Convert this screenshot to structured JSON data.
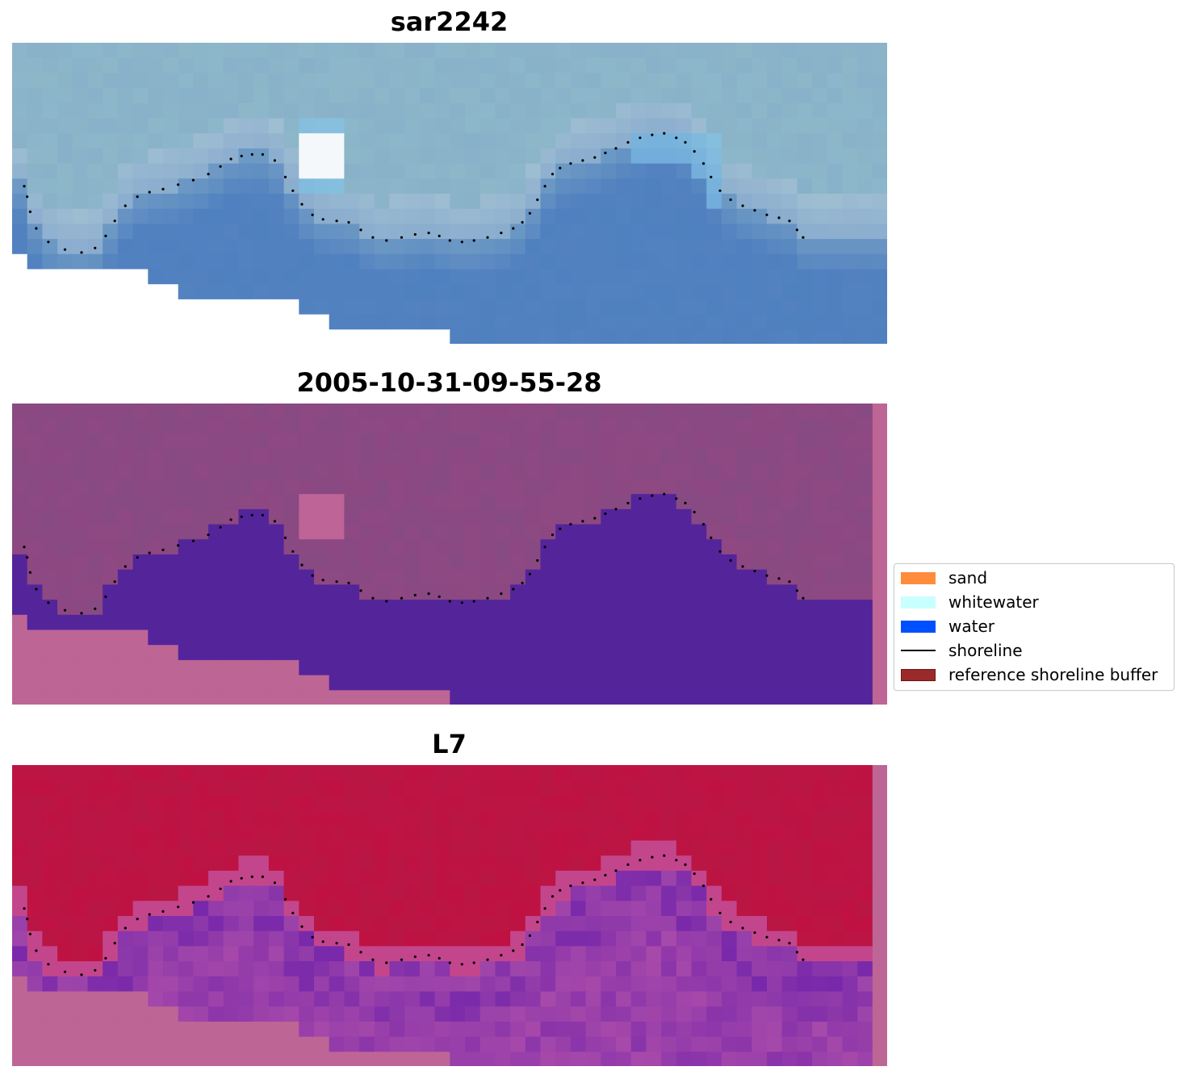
{
  "panels": [
    {
      "title": "sar2242",
      "style": "sar"
    },
    {
      "title": "2005-10-31-09-55-28",
      "style": "classified"
    },
    {
      "title": "L7",
      "style": "ndwi"
    }
  ],
  "legend": {
    "items": [
      {
        "label": "sand",
        "color": "#ff8c3c",
        "kind": "patch"
      },
      {
        "label": "whitewater",
        "color": "#c8ffff",
        "kind": "patch"
      },
      {
        "label": "water",
        "color": "#0050ff",
        "kind": "patch"
      },
      {
        "label": "shoreline",
        "color": "#000000",
        "kind": "line"
      },
      {
        "label": "reference shoreline buffer",
        "color": "#9a2a2a",
        "kind": "patch"
      }
    ]
  },
  "colors": {
    "nodata_pink": "#bd6595",
    "land_magenta": "#874a82",
    "water_purple": "#54249a",
    "land_red": "#bf1242",
    "sar_top": "#8db7c9",
    "sar_water": "#4f80bf"
  },
  "shoreline": [
    [
      0.8,
      9.5
    ],
    [
      1.0,
      10.2
    ],
    [
      1.2,
      11.2
    ],
    [
      1.6,
      12.3
    ],
    [
      2.4,
      13.2
    ],
    [
      3.5,
      13.7
    ],
    [
      4.6,
      13.9
    ],
    [
      5.5,
      13.6
    ],
    [
      6.2,
      12.8
    ],
    [
      6.8,
      11.8
    ],
    [
      7.5,
      10.8
    ],
    [
      8.3,
      10.2
    ],
    [
      9.1,
      9.9
    ],
    [
      10.0,
      9.7
    ],
    [
      11.0,
      9.4
    ],
    [
      12.0,
      9.1
    ],
    [
      13.0,
      8.7
    ],
    [
      13.8,
      8.2
    ],
    [
      14.5,
      7.7
    ],
    [
      15.2,
      7.5
    ],
    [
      15.9,
      7.4
    ],
    [
      16.6,
      7.4
    ],
    [
      17.4,
      7.8
    ],
    [
      18.1,
      8.9
    ],
    [
      18.6,
      9.8
    ],
    [
      19.2,
      10.7
    ],
    [
      19.9,
      11.4
    ],
    [
      20.6,
      11.7
    ],
    [
      21.5,
      11.8
    ],
    [
      22.3,
      11.9
    ],
    [
      23.1,
      12.4
    ],
    [
      23.9,
      12.9
    ],
    [
      24.8,
      13.1
    ],
    [
      25.8,
      12.9
    ],
    [
      26.7,
      12.7
    ],
    [
      27.6,
      12.6
    ],
    [
      28.3,
      12.8
    ],
    [
      29.0,
      13.1
    ],
    [
      29.8,
      13.2
    ],
    [
      30.6,
      13.1
    ],
    [
      31.5,
      12.9
    ],
    [
      32.4,
      12.6
    ],
    [
      33.2,
      12.3
    ],
    [
      33.8,
      11.9
    ],
    [
      34.3,
      11.3
    ],
    [
      34.8,
      10.4
    ],
    [
      35.3,
      9.5
    ],
    [
      35.8,
      8.7
    ],
    [
      36.3,
      8.3
    ],
    [
      37.0,
      8.0
    ],
    [
      37.8,
      7.8
    ],
    [
      38.6,
      7.6
    ],
    [
      39.3,
      7.3
    ],
    [
      40.0,
      7.0
    ],
    [
      40.8,
      6.6
    ],
    [
      41.6,
      6.3
    ],
    [
      42.4,
      6.1
    ],
    [
      43.2,
      6.0
    ],
    [
      44.0,
      6.3
    ],
    [
      44.6,
      6.6
    ],
    [
      45.2,
      7.2
    ],
    [
      45.8,
      8.0
    ],
    [
      46.3,
      8.9
    ],
    [
      46.9,
      9.8
    ],
    [
      47.6,
      10.4
    ],
    [
      48.4,
      10.8
    ],
    [
      49.2,
      11.1
    ],
    [
      50.0,
      11.4
    ],
    [
      50.8,
      11.6
    ],
    [
      51.5,
      11.8
    ],
    [
      52.0,
      12.4
    ],
    [
      52.4,
      12.9
    ]
  ]
}
